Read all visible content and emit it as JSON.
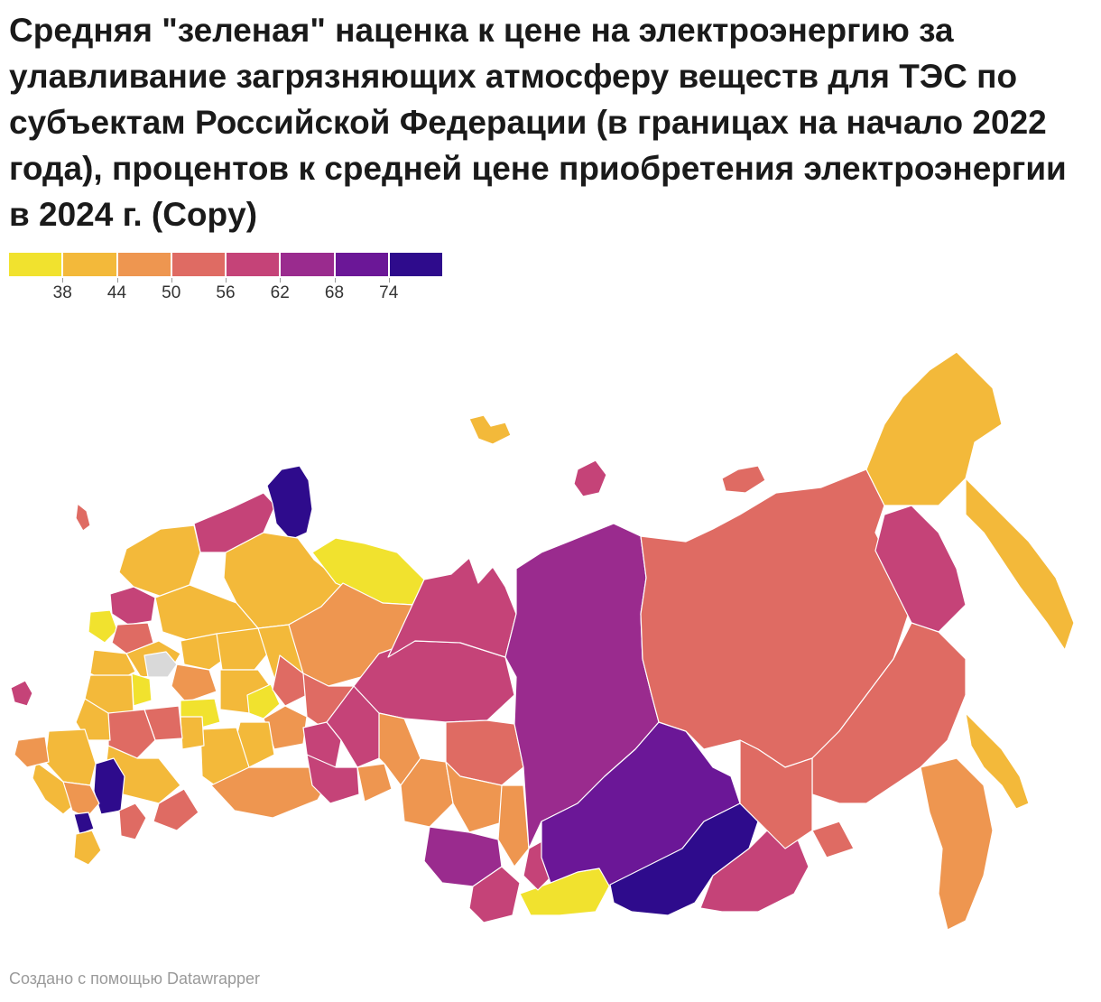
{
  "title": "Средняя \"зеленая\" наценка к цене на электроэнергию за улавливание загрязняющих атмосферу веществ для ТЭС по субъектам Российской Федерации (в границах на начало 2022 года), процентов к средней цене приобретения электроэнергии в 2024 г. (Copy)",
  "legend": {
    "bins": [
      {
        "color": "#f1e22e"
      },
      {
        "color": "#f3b93a"
      },
      {
        "color": "#ee9650"
      },
      {
        "color": "#df6b63"
      },
      {
        "color": "#c54378"
      },
      {
        "color": "#9a2b8e"
      },
      {
        "color": "#6b1797"
      },
      {
        "color": "#2e0b8c"
      }
    ],
    "breaks": [
      "38",
      "44",
      "50",
      "56",
      "62",
      "68",
      "74"
    ]
  },
  "no_data_color": "#d9d9d9",
  "footer": "Создано с помощью Datawrapper"
}
